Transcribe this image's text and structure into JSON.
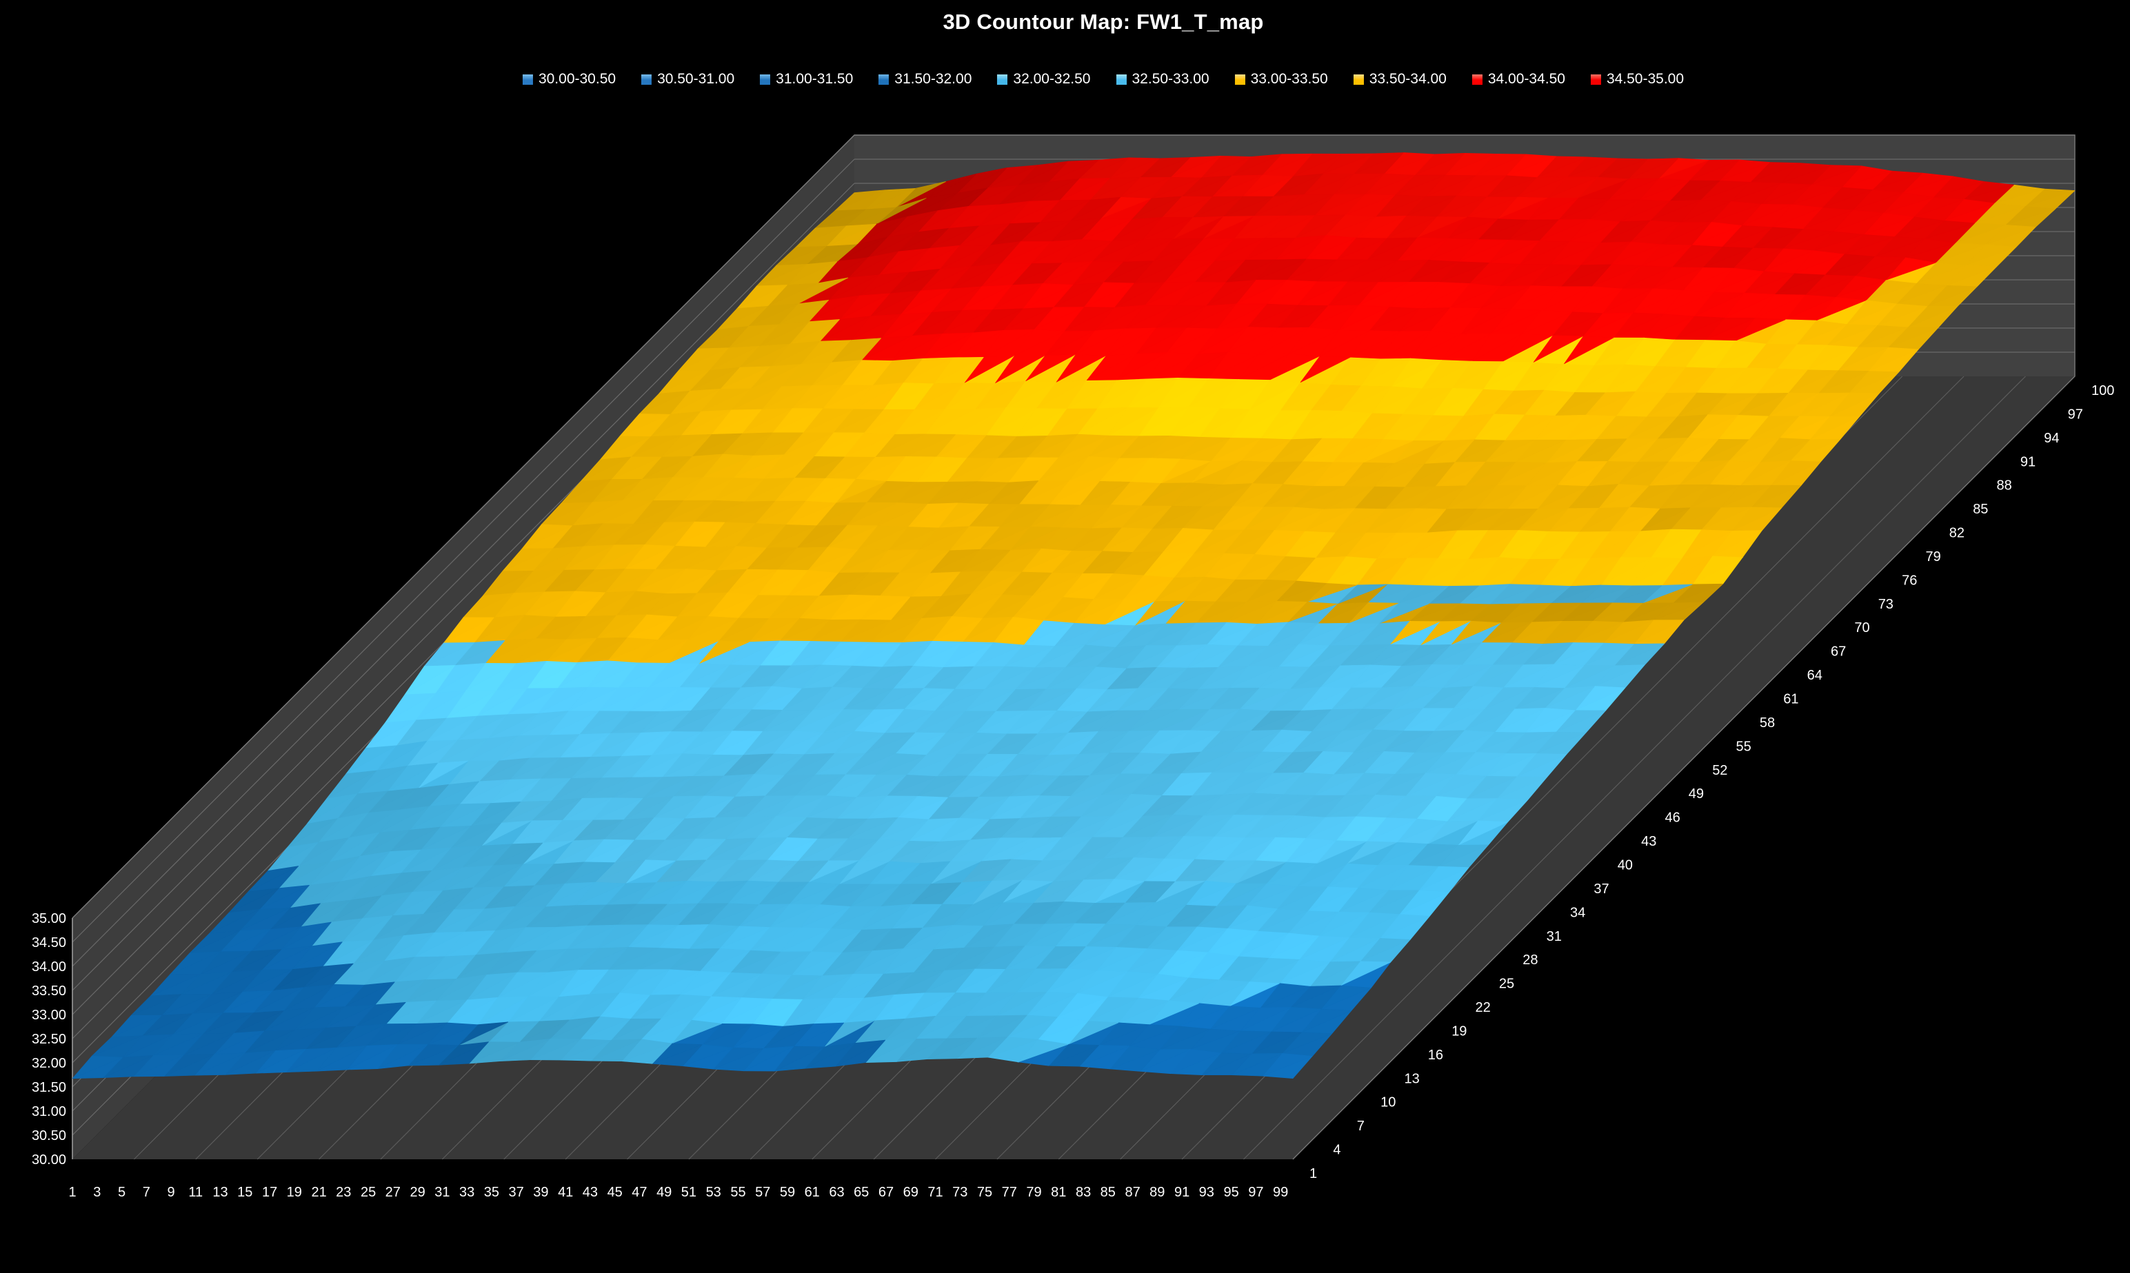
{
  "title": "3D Countour Map: FW1_T_map",
  "legend": {
    "items": [
      {
        "label": "30.00-30.50",
        "chip": "#2A7BC4",
        "chip_top": "#7CC0EE"
      },
      {
        "label": "30.50-31.00",
        "chip": "#2778C1",
        "chip_top": "#79BDEC"
      },
      {
        "label": "31.00-31.50",
        "chip": "#2376BE",
        "chip_top": "#74BAEa"
      },
      {
        "label": "31.50-32.00",
        "chip": "#1F72BA",
        "chip_top": "#6FB6E8"
      },
      {
        "label": "32.00-32.50",
        "chip": "#45B7EA",
        "chip_top": "#9ADFF7"
      },
      {
        "label": "32.50-33.00",
        "chip": "#4ABCEE",
        "chip_top": "#A2E3F8"
      },
      {
        "label": "33.00-33.50",
        "chip": "#FFC000",
        "chip_top": "#FFE08A"
      },
      {
        "label": "33.50-34.00",
        "chip": "#FFC000",
        "chip_top": "#FFE08A"
      },
      {
        "label": "34.00-34.50",
        "chip": "#FF0000",
        "chip_top": "#FF7D6E"
      },
      {
        "label": "34.50-35.00",
        "chip": "#F70000",
        "chip_top": "#FF7466"
      }
    ]
  },
  "axes": {
    "value_labels": [
      "30.00",
      "30.50",
      "31.00",
      "31.50",
      "32.00",
      "32.50",
      "33.00",
      "33.50",
      "34.00",
      "34.50",
      "35.00"
    ],
    "x_labels": [
      1,
      3,
      5,
      7,
      9,
      11,
      13,
      15,
      17,
      19,
      21,
      23,
      25,
      27,
      29,
      31,
      33,
      35,
      37,
      39,
      41,
      43,
      45,
      47,
      49,
      51,
      53,
      55,
      57,
      59,
      61,
      63,
      65,
      67,
      69,
      71,
      73,
      75,
      77,
      79,
      81,
      83,
      85,
      87,
      89,
      91,
      93,
      95,
      97,
      99
    ],
    "depth_labels": [
      1,
      4,
      7,
      10,
      13,
      16,
      19,
      22,
      25,
      28,
      31,
      34,
      37,
      40,
      43,
      46,
      49,
      52,
      55,
      58,
      61,
      64,
      67,
      70,
      73,
      76,
      79,
      82,
      85,
      88,
      91,
      94,
      97,
      100
    ]
  },
  "colors": {
    "background": "#000000",
    "floor": "#383838",
    "left_wall": "#3D3D3D",
    "back_wall": "#414141",
    "wall_grid": "#6A6A6A",
    "floor_grid": "#5C5C5C",
    "wall_edge": "#7A7A7A",
    "axis_line": "#9A9A9A",
    "text": "#FFFFFF"
  },
  "chart_data": {
    "type": "surface",
    "title": "3D Countour Map: FW1_T_map",
    "x_axis": {
      "range": [
        1,
        100
      ],
      "ticks": "odd 1-99"
    },
    "depth_axis": {
      "range": [
        1,
        100
      ],
      "ticks": "1-100 step 3"
    },
    "value_axis": {
      "range": [
        30,
        35
      ],
      "tick_step": 0.5
    },
    "legend_position": "top",
    "bands": [
      {
        "range": "30.00-30.50",
        "surface_color": "#134F8C"
      },
      {
        "range": "30.50-31.00",
        "surface_color": "#115594"
      },
      {
        "range": "31.00-31.50",
        "surface_color": "#0F5B9C"
      },
      {
        "range": "31.50-32.00",
        "surface_color": "#0C63A8"
      },
      {
        "range": "32.00-32.50",
        "surface_color": "#3FA7D2"
      },
      {
        "range": "32.50-33.00",
        "surface_color": "#4BB4DE"
      },
      {
        "range": "33.00-33.50",
        "surface_color": "#D9A300"
      },
      {
        "range": "33.50-34.00",
        "surface_color": "#E0AA00"
      },
      {
        "range": "34.00-34.50",
        "surface_color": "#DD0300"
      },
      {
        "range": "34.50-35.00",
        "surface_color": "#E30700"
      }
    ],
    "x_points": [
      1,
      6,
      11,
      16,
      21,
      26,
      31,
      36,
      41,
      46,
      50,
      55,
      60,
      65,
      70,
      75,
      80,
      85,
      90,
      95,
      100
    ],
    "z_points": [
      1,
      6,
      11,
      16,
      21,
      26,
      31,
      36,
      41,
      46,
      50,
      55,
      60,
      65,
      70,
      75,
      80,
      85,
      90,
      95,
      100
    ],
    "values": [
      [
        31.7,
        31.7,
        31.72,
        31.78,
        31.84,
        31.9,
        31.96,
        32.02,
        32.06,
        32.02,
        31.92,
        31.84,
        31.86,
        32.0,
        32.08,
        32.1,
        31.95,
        31.88,
        31.8,
        31.74,
        31.7
      ],
      [
        31.74,
        31.76,
        31.8,
        31.86,
        31.94,
        32.02,
        31.98,
        32.06,
        32.14,
        32.1,
        32.0,
        31.95,
        32.02,
        32.12,
        32.16,
        32.18,
        32.05,
        31.98,
        31.9,
        31.84,
        31.8
      ],
      [
        31.78,
        31.82,
        31.88,
        31.98,
        32.04,
        32.12,
        32.24,
        32.28,
        32.3,
        32.28,
        32.22,
        32.2,
        32.24,
        32.3,
        32.32,
        32.32,
        32.25,
        32.15,
        32.05,
        31.98,
        31.95
      ],
      [
        31.82,
        31.88,
        31.98,
        32.12,
        32.24,
        32.32,
        32.38,
        32.4,
        32.42,
        32.4,
        32.36,
        32.34,
        32.38,
        32.42,
        32.44,
        32.44,
        32.4,
        32.34,
        32.25,
        32.18,
        32.12
      ],
      [
        31.88,
        31.96,
        32.12,
        32.28,
        32.38,
        32.44,
        32.48,
        32.5,
        32.52,
        32.5,
        32.48,
        32.46,
        32.5,
        32.52,
        32.54,
        32.54,
        32.5,
        32.45,
        32.4,
        32.35,
        32.3
      ],
      [
        31.94,
        32.1,
        32.3,
        32.42,
        32.5,
        32.54,
        32.56,
        32.58,
        32.6,
        32.58,
        32.56,
        32.55,
        32.58,
        32.6,
        32.62,
        32.62,
        32.6,
        32.58,
        32.55,
        32.5,
        32.45
      ],
      [
        32.1,
        32.3,
        32.44,
        32.52,
        32.58,
        32.62,
        32.64,
        32.66,
        32.66,
        32.65,
        32.64,
        32.63,
        32.66,
        32.68,
        32.68,
        32.69,
        32.7,
        32.68,
        32.66,
        32.62,
        32.58
      ],
      [
        32.3,
        32.46,
        32.56,
        32.62,
        32.66,
        32.7,
        32.72,
        32.72,
        32.73,
        32.72,
        32.7,
        32.7,
        32.72,
        32.74,
        32.74,
        32.75,
        32.76,
        32.76,
        32.75,
        32.72,
        32.7
      ],
      [
        32.55,
        32.66,
        32.74,
        32.78,
        32.8,
        32.82,
        32.82,
        32.83,
        32.82,
        32.81,
        32.8,
        32.79,
        32.8,
        32.82,
        32.82,
        32.83,
        32.84,
        32.84,
        32.85,
        32.84,
        32.82
      ],
      [
        32.9,
        32.96,
        33.0,
        33.02,
        32.98,
        32.96,
        32.94,
        32.93,
        32.92,
        32.9,
        32.89,
        32.88,
        32.9,
        32.9,
        32.91,
        32.92,
        32.92,
        32.93,
        32.94,
        32.94,
        32.94
      ],
      [
        33.1,
        33.14,
        33.16,
        33.15,
        33.12,
        33.1,
        33.08,
        33.06,
        33.12,
        33.1,
        32.98,
        32.96,
        32.98,
        33.0,
        33.0,
        33.01,
        33.02,
        33.02,
        33.03,
        33.04,
        33.05
      ],
      [
        33.26,
        33.3,
        33.32,
        33.3,
        33.28,
        33.26,
        33.24,
        33.22,
        33.25,
        33.24,
        33.2,
        33.15,
        33.1,
        33.05,
        33.0,
        32.98,
        32.97,
        32.97,
        32.98,
        32.98,
        33.0
      ],
      [
        33.4,
        33.44,
        33.46,
        33.45,
        33.42,
        33.4,
        33.38,
        33.36,
        33.38,
        33.36,
        33.34,
        33.3,
        33.28,
        33.26,
        33.26,
        33.27,
        33.28,
        33.28,
        33.29,
        33.3,
        33.3
      ],
      [
        33.52,
        33.56,
        33.58,
        33.57,
        33.55,
        33.52,
        33.5,
        33.5,
        33.52,
        33.5,
        33.46,
        33.44,
        33.42,
        33.4,
        33.4,
        33.41,
        33.42,
        33.42,
        33.43,
        33.44,
        33.44
      ],
      [
        33.62,
        33.66,
        33.7,
        33.7,
        33.68,
        33.66,
        33.64,
        33.64,
        33.66,
        33.64,
        33.6,
        33.58,
        33.56,
        33.54,
        33.55,
        33.56,
        33.56,
        33.57,
        33.58,
        33.58,
        33.58
      ],
      [
        33.72,
        33.78,
        33.84,
        33.88,
        33.9,
        33.92,
        33.94,
        33.96,
        34.0,
        34.02,
        33.98,
        33.9,
        33.85,
        33.8,
        33.76,
        33.74,
        33.73,
        33.72,
        33.72,
        33.7,
        33.7
      ],
      [
        33.8,
        33.88,
        33.96,
        34.06,
        34.14,
        34.18,
        34.2,
        34.22,
        34.24,
        34.26,
        34.24,
        34.2,
        34.16,
        34.12,
        34.08,
        34.04,
        34.0,
        33.96,
        33.9,
        33.84,
        33.8
      ],
      [
        33.86,
        33.96,
        34.1,
        34.22,
        34.3,
        34.34,
        34.36,
        34.38,
        34.4,
        34.42,
        34.4,
        34.38,
        34.34,
        34.3,
        34.28,
        34.24,
        34.2,
        34.14,
        34.05,
        33.94,
        33.86
      ],
      [
        33.9,
        33.98,
        34.2,
        34.32,
        34.4,
        34.44,
        34.46,
        34.48,
        34.5,
        34.52,
        34.5,
        34.48,
        34.44,
        34.42,
        34.4,
        34.36,
        34.3,
        34.22,
        34.12,
        34.0,
        33.9
      ],
      [
        33.86,
        33.96,
        34.24,
        34.38,
        34.46,
        34.5,
        34.52,
        34.54,
        34.56,
        34.58,
        34.56,
        34.54,
        34.52,
        34.48,
        34.46,
        34.42,
        34.36,
        34.26,
        34.12,
        33.98,
        33.9
      ],
      [
        33.8,
        33.9,
        34.2,
        34.4,
        34.5,
        34.54,
        34.56,
        34.58,
        34.6,
        34.62,
        34.6,
        34.58,
        34.56,
        34.52,
        34.5,
        34.46,
        34.4,
        34.28,
        34.16,
        33.96,
        33.85
      ]
    ]
  }
}
